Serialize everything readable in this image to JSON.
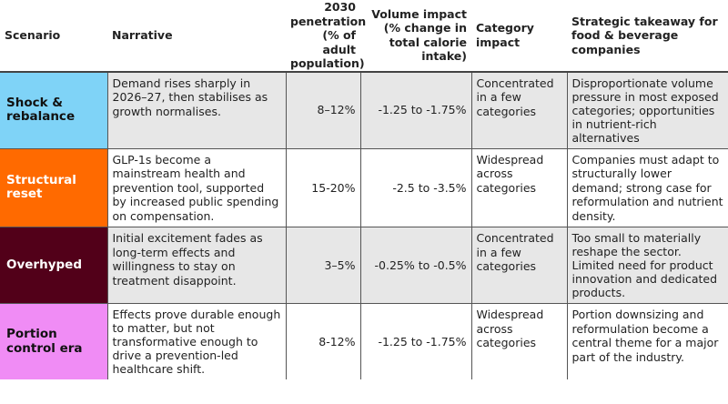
{
  "headers": {
    "scenario": "Scenario",
    "narrative": "Narrative",
    "penetration": "2030 penetration (% of adult population)",
    "volume": "Volume impact (% change in total calorie intake)",
    "category": "Category impact",
    "takeaway": "Strategic takeaway for food & beverage companies"
  },
  "rows": [
    {
      "scenario": "Shock & rebalance",
      "color": "#7fd3f7",
      "narrative": "Demand rises sharply in 2026–27, then stabilises as growth normalises.",
      "penetration": "8–12%",
      "volume": "-1.25 to -1.75%",
      "category": "Concentrated in a few categories",
      "takeaway": "Disproportionate volume pressure in most exposed categories; opportunities in nutrient-rich alternatives"
    },
    {
      "scenario": "Structural reset",
      "color": "#ff6a00",
      "narrative": "GLP-1s become a mainstream health and prevention tool, supported by increased public spending on compensation.",
      "penetration": "15-20%",
      "volume": "-2.5 to -3.5%",
      "category": "Widespread across categories",
      "takeaway": "Companies must adapt to structurally lower demand; strong case for reformulation and nutrient density."
    },
    {
      "scenario": "Overhyped",
      "color": "#520019",
      "narrative": "Initial excitement fades as long-term effects and willingness to stay on treatment disappoint.",
      "penetration": "3–5%",
      "volume": "-0.25% to -0.5%",
      "category": "Concentrated in a few categories",
      "takeaway": "Too small to materially reshape the sector. Limited need for product innovation and dedicated products."
    },
    {
      "scenario": "Portion control era",
      "color": "#f08cf5",
      "narrative": "Effects prove durable enough to matter, but not transformative enough to drive a prevention-led healthcare shift.",
      "penetration": "8-12%",
      "volume": "-1.25 to -1.75%",
      "category": "Widespread across categories",
      "takeaway": "Portion downsizing and reformulation become a central theme for a major part of the industry."
    }
  ]
}
